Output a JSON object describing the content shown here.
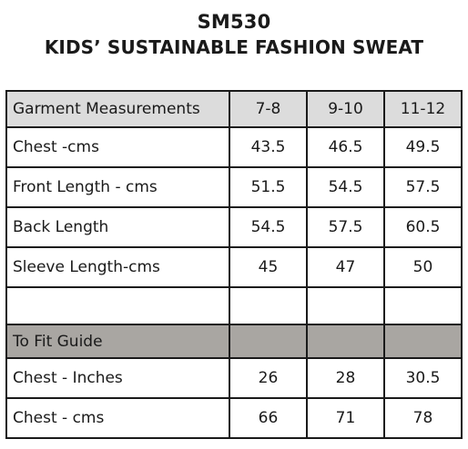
{
  "header": {
    "code": "SM530",
    "name": "KIDS’ SUSTAINABLE FASHION SWEAT"
  },
  "table": {
    "columns": [
      "Garment Measurements",
      "7-8",
      "9-10",
      "11-12"
    ],
    "garment_rows": [
      {
        "label": "Chest -cms",
        "values": [
          "43.5",
          "46.5",
          "49.5"
        ]
      },
      {
        "label": "Front Length - cms",
        "values": [
          "51.5",
          "54.5",
          "57.5"
        ]
      },
      {
        "label": "Back Length",
        "values": [
          "54.5",
          "57.5",
          "60.5"
        ]
      },
      {
        "label": "Sleeve Length-cms",
        "values": [
          "45",
          "47",
          "50"
        ]
      }
    ],
    "fit_section_label": "To Fit Guide",
    "fit_rows": [
      {
        "label": "Chest - Inches",
        "values": [
          "26",
          "28",
          "30.5"
        ]
      },
      {
        "label": "Chest - cms",
        "values": [
          "66",
          "71",
          "78"
        ]
      }
    ]
  },
  "colors": {
    "header_row_bg": "#dcdcdc",
    "section_row_bg": "#a9a6a2",
    "border": "#1a1a1a",
    "text": "#1a1a1a"
  }
}
